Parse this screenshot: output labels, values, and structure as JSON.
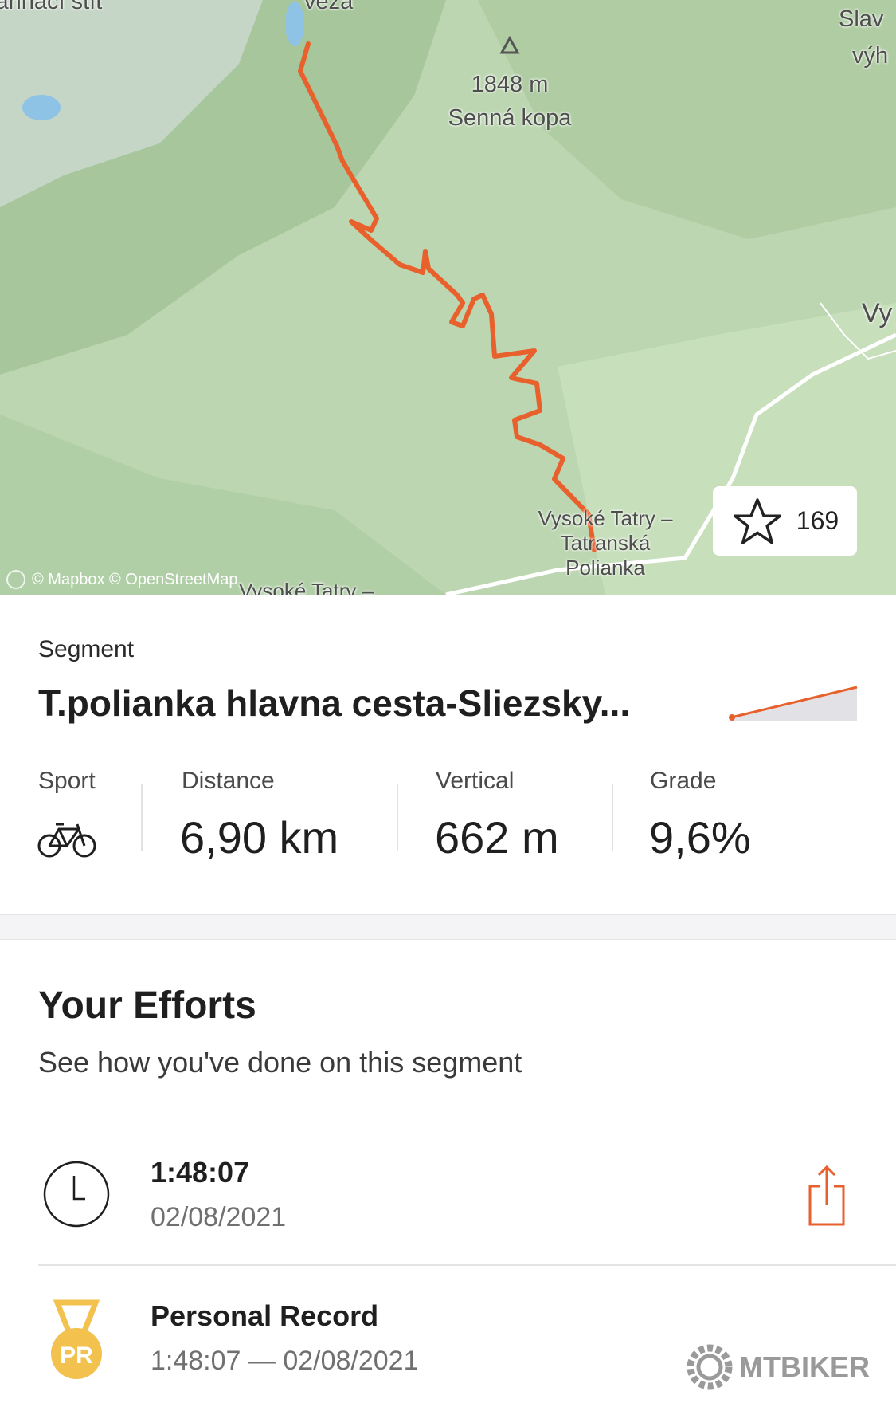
{
  "map": {
    "labels": {
      "top_left": "Jahňací štít",
      "top_center": "veža",
      "peak_elevation": "1848 m",
      "peak_name": "Senná kopa",
      "top_right_1": "Slav",
      "top_right_2": "výh",
      "right": "Vy",
      "town": "Vysoké Tatry – Tatranská Polianka",
      "bottom": "Vysoké Tatry –"
    },
    "attribution": "© Mapbox © OpenStreetMap",
    "route_color": "#e8602c",
    "star_count": "169"
  },
  "segment": {
    "type_label": "Segment",
    "title": "T.polianka hlavna cesta-Sliezsky...",
    "stats": [
      {
        "label": "Sport",
        "icon": "bike-icon"
      },
      {
        "label": "Distance",
        "value": "6,90 km"
      },
      {
        "label": "Vertical",
        "value": "662 m"
      },
      {
        "label": "Grade",
        "value": "9,6%"
      }
    ]
  },
  "efforts": {
    "title": "Your Efforts",
    "subtitle": "See how you've done on this segment",
    "items": [
      {
        "icon": "clock-icon",
        "primary": "1:48:07",
        "secondary": "02/08/2021"
      },
      {
        "icon": "pr-medal-icon",
        "badge": "PR",
        "primary": "Personal Record",
        "secondary": "1:48:07 — 02/08/2021"
      }
    ]
  },
  "watermark": "MTBIKER",
  "colors": {
    "accent": "#e8602c",
    "medal": "#f2c14e"
  }
}
